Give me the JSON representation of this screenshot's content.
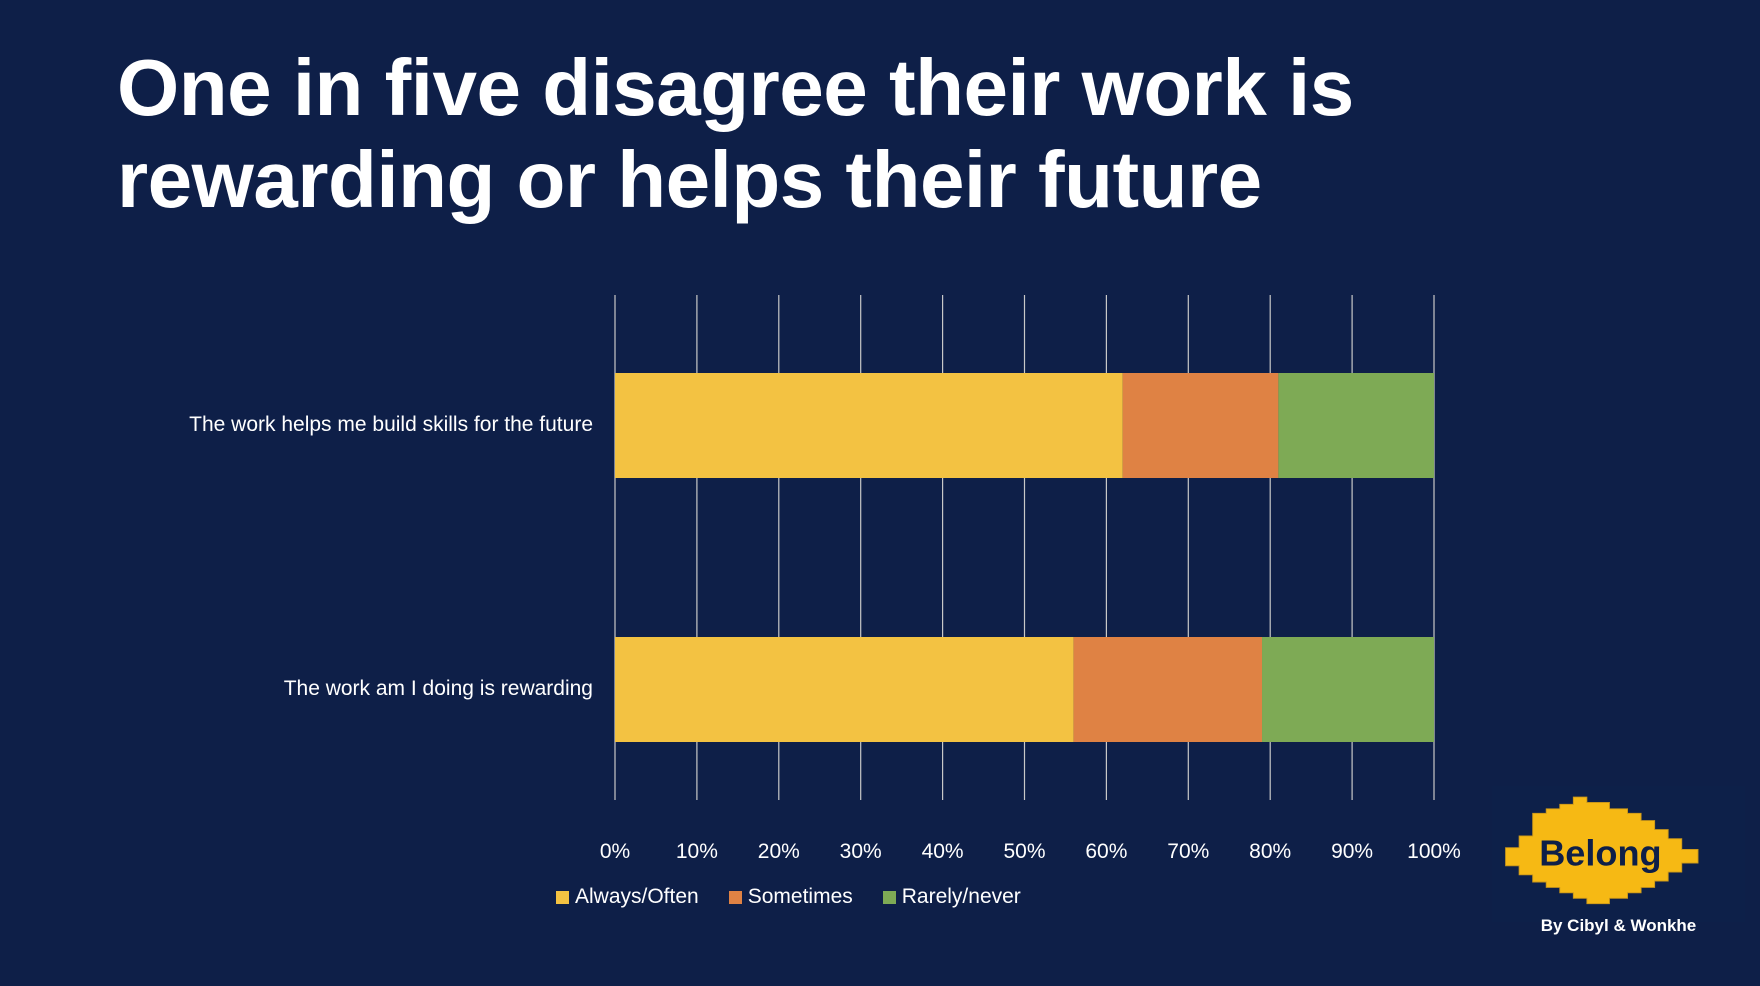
{
  "title_line1": "One in five disagree their work is",
  "title_line2": "rewarding or helps their future",
  "chart_data": {
    "type": "bar",
    "orientation": "horizontal",
    "stacked": true,
    "title": "One in five disagree their work is rewarding or helps their future",
    "categories": [
      "The work helps me build skills for the future",
      "The work am I doing is rewarding"
    ],
    "series": [
      {
        "name": "Always/Often",
        "color": "#f3c242",
        "values": [
          62,
          56
        ]
      },
      {
        "name": "Sometimes",
        "color": "#df8244",
        "values": [
          19,
          23
        ]
      },
      {
        "name": "Rarely/never",
        "color": "#7eaa55",
        "values": [
          19,
          21
        ]
      }
    ],
    "xlim": [
      0,
      100
    ],
    "x_ticks": [
      "0%",
      "10%",
      "20%",
      "30%",
      "40%",
      "50%",
      "60%",
      "70%",
      "80%",
      "90%",
      "100%"
    ],
    "grid": true,
    "legend_position": "bottom-center",
    "xlabel": "",
    "ylabel": ""
  },
  "logo": {
    "text": "Belong",
    "caption": "By Cibyl & Wonkhe",
    "color": "#f6b914"
  }
}
